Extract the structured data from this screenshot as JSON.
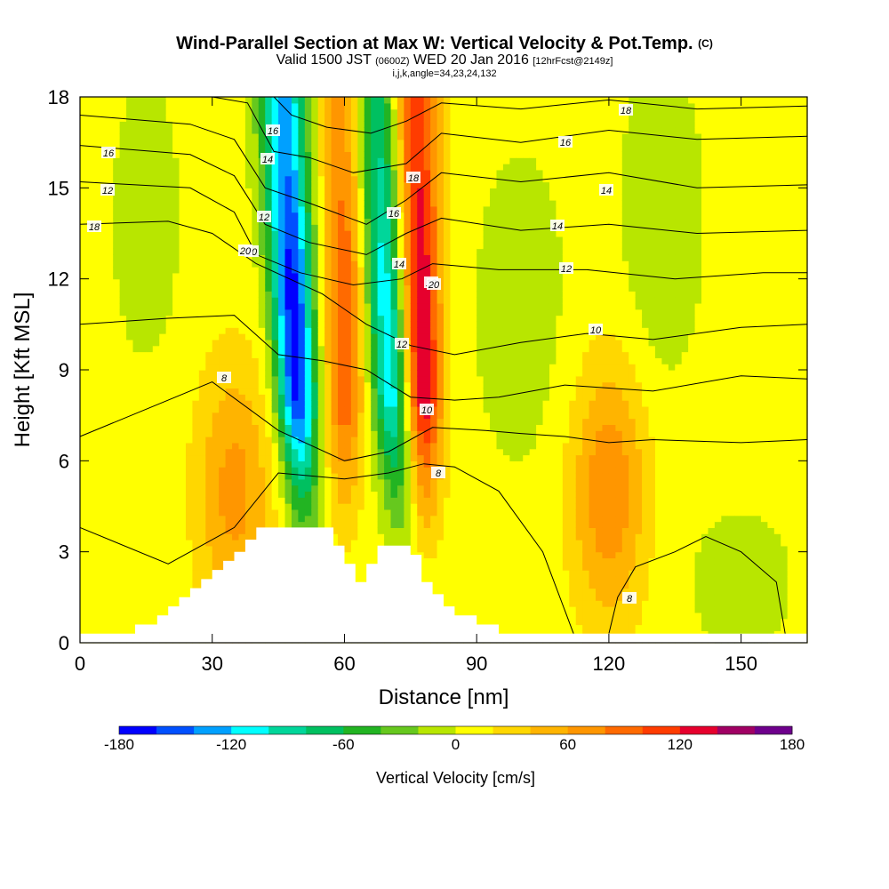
{
  "header": {
    "title": "Wind-Parallel Section at Max W: Vertical Velocity & Pot.Temp.",
    "title_mark": "(C)",
    "valid_prefix": "Valid 1500 JST",
    "valid_utc": "(0600Z)",
    "valid_date": "WED 20 Jan 2016",
    "forecast": "[12hrFcst@2149z]",
    "indices": "i,j,k,angle=34,23,24,132"
  },
  "chart_data": {
    "type": "heatmap",
    "xlabel": "Distance [nm]",
    "ylabel": "Height [Kft MSL]",
    "xlim": [
      0,
      165
    ],
    "ylim": [
      0,
      18
    ],
    "x_ticks": [
      "0",
      "30",
      "60",
      "90",
      "120",
      "150"
    ],
    "x_tick_values": [
      0,
      30,
      60,
      90,
      120,
      150
    ],
    "y_ticks": [
      "0",
      "3",
      "6",
      "9",
      "12",
      "15",
      "18"
    ],
    "y_tick_values": [
      0,
      3,
      6,
      9,
      12,
      15,
      18
    ],
    "colorbar": {
      "label": "Vertical Velocity [cm/s]",
      "ticks": [
        "-180",
        "-120",
        "-60",
        "0",
        "60",
        "120",
        "180"
      ],
      "tick_values": [
        -180,
        -120,
        -60,
        0,
        60,
        120,
        180
      ],
      "range": [
        -180,
        180
      ],
      "colors": [
        "#0000ff",
        "#0050ff",
        "#00a0ff",
        "#00ffff",
        "#00d69a",
        "#00c060",
        "#22b422",
        "#66c81e",
        "#b8e600",
        "#ffff00",
        "#ffd700",
        "#ffb400",
        "#ff9600",
        "#ff6a00",
        "#ff3c00",
        "#e6002d",
        "#a00064",
        "#6e008c"
      ]
    },
    "terrain": [
      [
        0,
        0.3
      ],
      [
        10,
        0.3
      ],
      [
        12.5,
        0.6
      ],
      [
        17.5,
        0.9
      ],
      [
        20,
        1.2
      ],
      [
        22.5,
        1.5
      ],
      [
        25,
        1.8
      ],
      [
        27.5,
        2.1
      ],
      [
        30,
        2.4
      ],
      [
        32.5,
        2.7
      ],
      [
        35,
        3.0
      ],
      [
        37.5,
        3.4
      ],
      [
        40,
        3.8
      ],
      [
        55,
        3.8
      ],
      [
        57.5,
        3.2
      ],
      [
        60,
        2.6
      ],
      [
        62.5,
        2.0
      ],
      [
        65,
        2.6
      ],
      [
        67.5,
        3.2
      ],
      [
        72.5,
        3.2
      ],
      [
        75,
        2.9
      ],
      [
        77.5,
        2.0
      ],
      [
        80,
        1.6
      ],
      [
        82.5,
        1.2
      ],
      [
        85,
        0.9
      ],
      [
        90,
        0.6
      ],
      [
        95,
        0.3
      ],
      [
        165,
        0.3
      ]
    ],
    "contours": [
      {
        "label": "8",
        "points": [
          [
            0,
            3.8
          ],
          [
            20,
            2.6
          ],
          [
            35,
            3.8
          ],
          [
            45,
            5.6
          ],
          [
            60,
            5.4
          ],
          [
            70,
            5.6
          ],
          [
            78,
            5.9
          ],
          [
            85,
            5.8
          ],
          [
            95,
            5.0
          ],
          [
            105,
            3.0
          ],
          [
            112,
            0.3
          ]
        ]
      },
      {
        "label": "8",
        "points": [
          [
            120,
            0.3
          ],
          [
            122,
            1.5
          ],
          [
            126,
            2.5
          ],
          [
            135,
            3.0
          ],
          [
            142,
            3.5
          ],
          [
            150,
            3.0
          ],
          [
            158,
            2.0
          ],
          [
            160,
            0.3
          ]
        ]
      },
      {
        "label": "8",
        "points": [
          [
            0,
            6.8
          ],
          [
            20,
            8.0
          ],
          [
            30,
            8.6
          ],
          [
            45,
            7.0
          ],
          [
            60,
            6.0
          ],
          [
            70,
            6.3
          ],
          [
            80,
            7.1
          ],
          [
            92,
            7.0
          ],
          [
            100,
            6.9
          ],
          [
            110,
            6.8
          ],
          [
            120,
            6.6
          ],
          [
            130,
            6.7
          ],
          [
            150,
            6.6
          ],
          [
            165,
            6.7
          ]
        ]
      },
      {
        "label": "10",
        "points": [
          [
            0,
            10.5
          ],
          [
            20,
            10.7
          ],
          [
            35,
            10.8
          ],
          [
            45,
            9.5
          ],
          [
            55,
            9.3
          ],
          [
            65,
            9.0
          ],
          [
            75,
            8.1
          ],
          [
            85,
            8.0
          ],
          [
            95,
            8.1
          ],
          [
            110,
            8.5
          ],
          [
            130,
            8.3
          ],
          [
            150,
            8.8
          ],
          [
            165,
            8.7
          ]
        ]
      },
      {
        "label": "12",
        "points": [
          [
            0,
            13.8
          ],
          [
            20,
            13.9
          ],
          [
            30,
            13.5
          ],
          [
            40,
            12.5
          ],
          [
            55,
            11.5
          ],
          [
            65,
            10.5
          ],
          [
            75,
            9.8
          ],
          [
            85,
            9.5
          ],
          [
            100,
            9.9
          ],
          [
            115,
            10.2
          ],
          [
            130,
            10.0
          ],
          [
            150,
            10.4
          ],
          [
            165,
            10.5
          ]
        ]
      },
      {
        "label": "14",
        "points": [
          [
            0,
            15.2
          ],
          [
            25,
            15.0
          ],
          [
            35,
            14.2
          ],
          [
            40,
            12.8
          ],
          [
            50,
            12.2
          ],
          [
            62,
            11.8
          ],
          [
            73,
            12.0
          ],
          [
            80,
            12.5
          ],
          [
            95,
            12.3
          ],
          [
            115,
            12.3
          ],
          [
            135,
            12.0
          ],
          [
            155,
            12.2
          ],
          [
            165,
            12.2
          ]
        ]
      },
      {
        "label": "16",
        "points": [
          [
            0,
            16.4
          ],
          [
            25,
            16.1
          ],
          [
            35,
            15.4
          ],
          [
            42,
            13.8
          ],
          [
            52,
            13.2
          ],
          [
            65,
            12.8
          ],
          [
            74,
            13.5
          ],
          [
            82,
            14.0
          ],
          [
            100,
            13.6
          ],
          [
            120,
            13.8
          ],
          [
            140,
            13.5
          ],
          [
            165,
            13.6
          ]
        ]
      },
      {
        "label": "18",
        "points": [
          [
            0,
            17.4
          ],
          [
            25,
            17.1
          ],
          [
            35,
            16.6
          ],
          [
            42,
            15.0
          ],
          [
            52,
            14.5
          ],
          [
            65,
            13.8
          ],
          [
            74,
            14.6
          ],
          [
            82,
            15.5
          ],
          [
            100,
            15.2
          ],
          [
            120,
            15.5
          ],
          [
            140,
            15.0
          ],
          [
            165,
            15.1
          ]
        ]
      },
      {
        "label": "20",
        "points": [
          [
            30,
            18.0
          ],
          [
            38,
            17.8
          ],
          [
            44,
            16.2
          ],
          [
            52,
            16.0
          ],
          [
            62,
            15.5
          ],
          [
            74,
            15.8
          ],
          [
            82,
            16.8
          ],
          [
            100,
            16.5
          ],
          [
            120,
            16.9
          ],
          [
            140,
            16.6
          ],
          [
            165,
            16.7
          ]
        ]
      },
      {
        "label": "",
        "points": [
          [
            44,
            18.0
          ],
          [
            48,
            17.4
          ],
          [
            56,
            17.0
          ],
          [
            66,
            16.8
          ],
          [
            74,
            17.2
          ],
          [
            82,
            17.8
          ],
          [
            100,
            17.6
          ],
          [
            120,
            17.9
          ],
          [
            140,
            17.6
          ],
          [
            165,
            17.7
          ]
        ]
      }
    ],
    "contour_labels": [
      "8",
      "8",
      "8",
      "10",
      "10",
      "10",
      "12",
      "12",
      "12",
      "12",
      "12",
      "14",
      "14",
      "14",
      "14",
      "16",
      "16",
      "16",
      "16",
      "18",
      "18",
      "18",
      "20",
      "20"
    ],
    "wfield_features": [
      {
        "name": "downdraft-west",
        "x_center_at_base": 52,
        "x_center_at_top": 46,
        "w_min": -180
      },
      {
        "name": "downdraft-east",
        "x_center_at_base": 74,
        "x_center_at_top": 67,
        "w_min": -130
      },
      {
        "name": "updraft-east",
        "x_center_at_base": 79,
        "x_center_at_top": 76,
        "w_max": 140
      },
      {
        "name": "updraft-mid",
        "x_center_at_base": 60,
        "x_center_at_top": 60,
        "w_max": 90
      },
      {
        "name": "updraft-lee",
        "x_center": 120,
        "height_center": 5,
        "w_max": 70
      },
      {
        "name": "updraft-west",
        "x_center": 35,
        "height_center": 5,
        "w_max": 60
      }
    ]
  }
}
